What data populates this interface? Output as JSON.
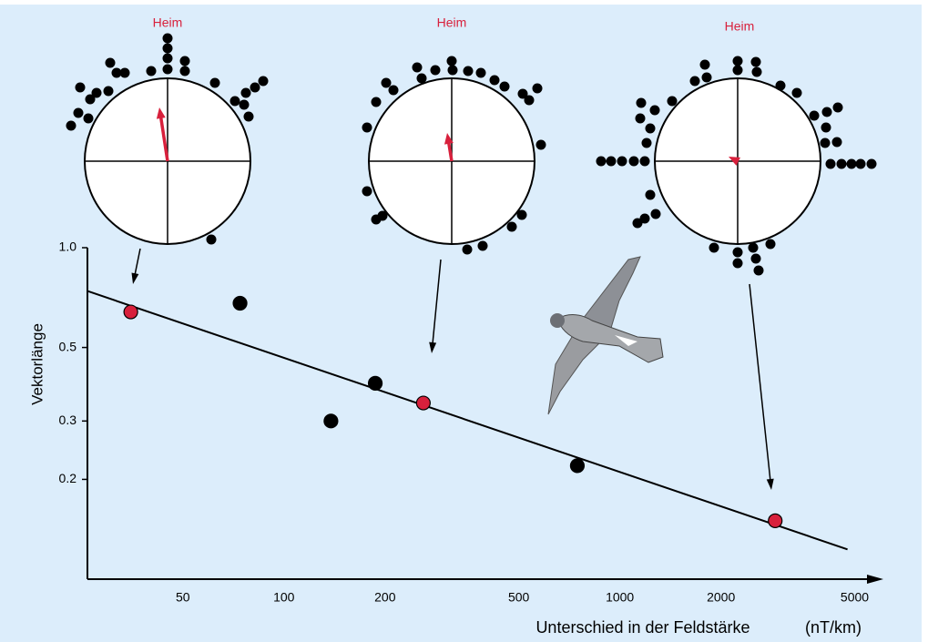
{
  "chart_data": {
    "type": "scatter",
    "log_x": true,
    "log_y": true,
    "circle_labels": [
      "Heim",
      "Heim",
      "Heim"
    ],
    "ylabel": "Vektorlänge",
    "xlabel": "Unterschied in der Feldstärke",
    "xunit": "(nT/km)",
    "xlim": [
      26,
      5900
    ],
    "ylim": [
      0.1,
      1
    ],
    "xticks": [
      50,
      100,
      200,
      500,
      1000,
      2000,
      5000
    ],
    "yticks": [
      {
        "value": 1,
        "label": "1.0"
      },
      0.5,
      0.3,
      0.2
    ],
    "series": [
      {
        "color": "#000000",
        "x": [
          74,
          187,
          138,
          747
        ],
        "values": [
          0.68,
          0.39,
          0.3,
          0.22
        ]
      },
      {
        "color": "#d8203c",
        "x": [
          35,
          260,
          2900
        ],
        "values": [
          0.64,
          0.34,
          0.15
        ]
      }
    ],
    "trend": {
      "color": "#000000",
      "x": [
        26,
        4760
      ],
      "values": [
        0.74,
        0.123
      ]
    }
  }
}
